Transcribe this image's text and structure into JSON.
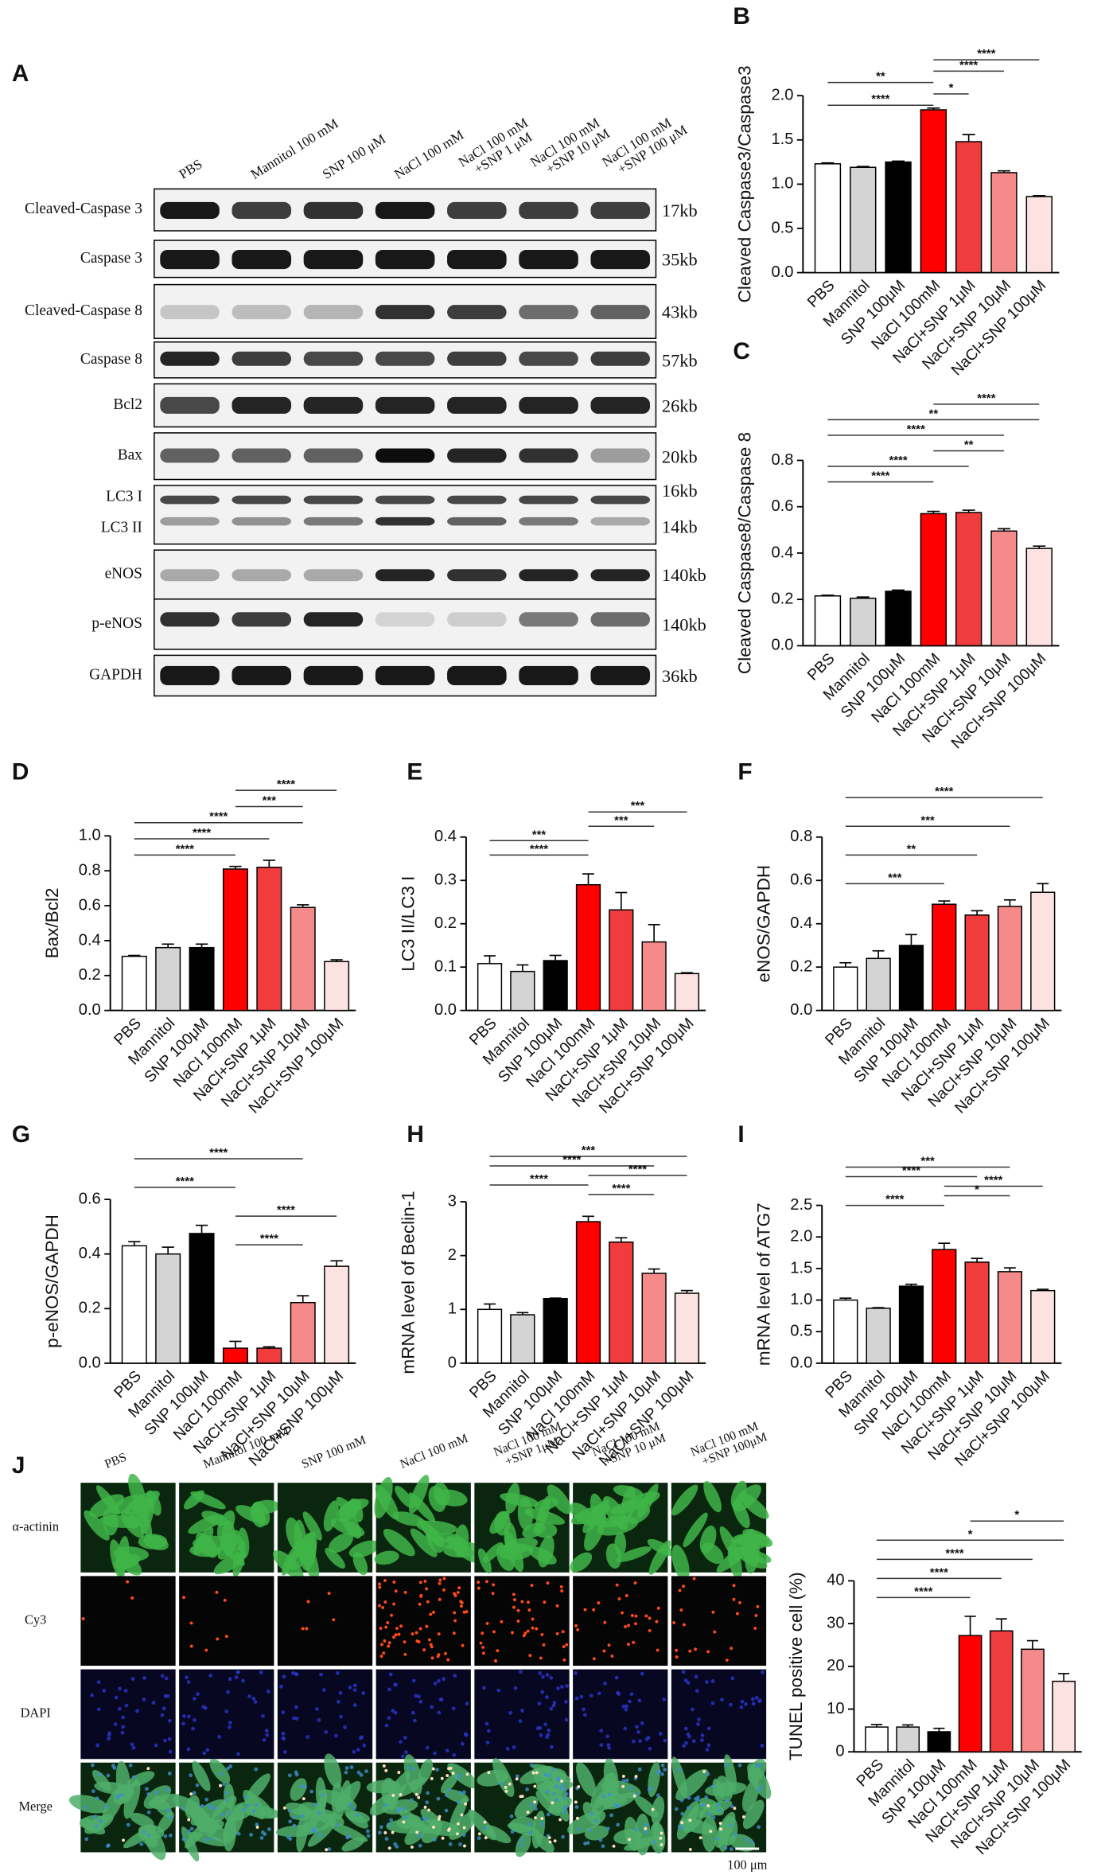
{
  "panel_a": {
    "panel": "A",
    "lanes": [
      "PBS",
      "Mannitol 100 mM",
      "SNP 100 μM",
      "NaCl 100 mM",
      [
        "NaCl 100 mM",
        "+SNP 1 μM"
      ],
      [
        "NaCl 100 mM",
        "+SNP 10 μM"
      ],
      [
        "NaCl 100 mM",
        "+SNP 100 μM"
      ]
    ],
    "rows": [
      {
        "labels": [
          "Cleaved-Caspase 3"
        ],
        "sizes": [
          "17kb"
        ]
      },
      {
        "labels": [
          "Caspase 3"
        ],
        "sizes": [
          "35kb"
        ]
      },
      {
        "labels": [
          "Cleaved-Caspase 8"
        ],
        "sizes": [
          "43kb"
        ]
      },
      {
        "labels": [
          "Caspase 8"
        ],
        "sizes": [
          "57kb"
        ]
      },
      {
        "labels": [
          "Bcl2"
        ],
        "sizes": [
          "26kb"
        ]
      },
      {
        "labels": [
          "Bax"
        ],
        "sizes": [
          "20kb"
        ]
      },
      {
        "labels": [
          "LC3 I",
          "LC3 II"
        ],
        "sizes": [
          "16kb",
          "14kb"
        ]
      },
      {
        "labels": [
          "eNOS"
        ],
        "sizes": [
          "140kb"
        ]
      },
      {
        "labels": [
          "p-eNOS"
        ],
        "sizes": [
          "140kb"
        ]
      },
      {
        "labels": [
          "GAPDH"
        ],
        "sizes": [
          "36kb"
        ]
      }
    ]
  },
  "chart_data": [
    {
      "type": "bar",
      "panel": "B",
      "ylabel": "Cleaved Caspase3/Caspase3",
      "categories": [
        "PBS",
        "Mannitol",
        "SNP 100μM",
        "NaCl 100mM",
        "NaCl+SNP 1μM",
        "NaCl+SNP 10μM",
        "NaCl+SNP 100μM"
      ],
      "values": [
        1.23,
        1.19,
        1.25,
        1.84,
        1.48,
        1.13,
        0.86
      ],
      "errors": [
        0.01,
        0.01,
        0.01,
        0.02,
        0.08,
        0.02,
        0.01
      ],
      "colors": [
        "#ffffff",
        "#d4d4d4",
        "#000000",
        "#ff0000",
        "#f03c3c",
        "#f58a8a",
        "#fde2e2"
      ],
      "ylim": [
        0,
        2
      ],
      "yticks": [
        {
          "value": 0,
          "label": "0.0"
        },
        0.5,
        {
          "value": 1,
          "label": "1.0"
        },
        1.5,
        {
          "value": 2,
          "label": "2.0"
        }
      ],
      "brackets": [
        {
          "from": 3,
          "to": 6,
          "label": "****"
        },
        {
          "from": 3,
          "to": 5,
          "label": "****"
        },
        {
          "from": 0,
          "to": 3,
          "label": "**"
        },
        {
          "from": 3,
          "to": 4,
          "label": "*"
        },
        {
          "from": 0,
          "to": 3,
          "label": "****"
        }
      ]
    },
    {
      "type": "bar",
      "panel": "C",
      "ylabel": "Cleaved Caspase8/Caspase 8",
      "categories": [
        "PBS",
        "Mannitol",
        "SNP 100μM",
        "NaCl 100mM",
        "NaCl+SNP 1μM",
        "NaCl+SNP 10μM",
        "NaCl+SNP 100μM"
      ],
      "values": [
        0.215,
        0.205,
        0.235,
        0.57,
        0.575,
        0.495,
        0.42
      ],
      "errors": [
        0.003,
        0.005,
        0.005,
        0.01,
        0.01,
        0.01,
        0.01
      ],
      "colors": [
        "#ffffff",
        "#d4d4d4",
        "#000000",
        "#ff0000",
        "#f03c3c",
        "#f58a8a",
        "#fde2e2"
      ],
      "ylim": [
        0,
        0.8
      ],
      "yticks": [
        {
          "value": 0,
          "label": "0.0"
        },
        0.2,
        0.4,
        0.6,
        0.8
      ],
      "brackets": [
        {
          "from": 3,
          "to": 6,
          "label": "****"
        },
        {
          "from": 0,
          "to": 6,
          "label": "**"
        },
        {
          "from": 0,
          "to": 5,
          "label": "****"
        },
        {
          "from": 3,
          "to": 5,
          "label": "**"
        },
        {
          "from": 0,
          "to": 4,
          "label": "****"
        },
        {
          "from": 0,
          "to": 3,
          "label": "****"
        }
      ]
    },
    {
      "type": "bar",
      "panel": "D",
      "ylabel": "Bax/Bcl2",
      "categories": [
        "PBS",
        "Mannitol",
        "SNP 100μM",
        "NaCl 100mM",
        "NaCl+SNP 1μM",
        "NaCl+SNP 10μM",
        "NaCl+SNP 100μM"
      ],
      "values": [
        0.31,
        0.36,
        0.36,
        0.81,
        0.82,
        0.59,
        0.28
      ],
      "errors": [
        0.005,
        0.02,
        0.02,
        0.015,
        0.04,
        0.015,
        0.01
      ],
      "colors": [
        "#ffffff",
        "#d4d4d4",
        "#000000",
        "#ff0000",
        "#f03c3c",
        "#f58a8a",
        "#fde2e2"
      ],
      "ylim": [
        0,
        1
      ],
      "yticks": [
        {
          "value": 0,
          "label": "0.0"
        },
        0.2,
        0.4,
        0.6,
        0.8,
        {
          "value": 1,
          "label": "1.0"
        }
      ],
      "brackets": [
        {
          "from": 3,
          "to": 6,
          "label": "****"
        },
        {
          "from": 3,
          "to": 5,
          "label": "***"
        },
        {
          "from": 0,
          "to": 5,
          "label": "****"
        },
        {
          "from": 0,
          "to": 4,
          "label": "****"
        },
        {
          "from": 0,
          "to": 3,
          "label": "****"
        }
      ]
    },
    {
      "type": "bar",
      "panel": "E",
      "ylabel": "LC3 II/LC3 I",
      "categories": [
        "PBS",
        "Mannitol",
        "SNP 100μM",
        "NaCl 100mM",
        "NaCl+SNP 1μM",
        "NaCl+SNP 10μM",
        "NaCl+SNP 100μM"
      ],
      "values": [
        0.108,
        0.09,
        0.115,
        0.29,
        0.232,
        0.158,
        0.085
      ],
      "errors": [
        0.018,
        0.015,
        0.012,
        0.025,
        0.04,
        0.04,
        0.002
      ],
      "colors": [
        "#ffffff",
        "#d4d4d4",
        "#000000",
        "#ff0000",
        "#f03c3c",
        "#f58a8a",
        "#fde2e2"
      ],
      "ylim": [
        0,
        0.4
      ],
      "yticks": [
        {
          "value": 0,
          "label": "0.0"
        },
        0.1,
        0.2,
        0.3,
        0.4
      ],
      "brackets": [
        {
          "from": 3,
          "to": 6,
          "label": "***"
        },
        {
          "from": 3,
          "to": 5,
          "label": "***"
        },
        {
          "from": 0,
          "to": 3,
          "label": "***"
        },
        {
          "from": 0,
          "to": 3,
          "label": "****"
        }
      ]
    },
    {
      "type": "bar",
      "panel": "F",
      "ylabel": "eNOS/GAPDH",
      "categories": [
        "PBS",
        "Mannitol",
        "SNP 100μM",
        "NaCl 100mM",
        "NaCl+SNP 1μM",
        "NaCl+SNP 10μM",
        "NaCl+SNP 100μM"
      ],
      "values": [
        0.2,
        0.24,
        0.3,
        0.49,
        0.44,
        0.48,
        0.545
      ],
      "errors": [
        0.02,
        0.035,
        0.05,
        0.015,
        0.02,
        0.03,
        0.04
      ],
      "colors": [
        "#ffffff",
        "#d4d4d4",
        "#000000",
        "#ff0000",
        "#f03c3c",
        "#f58a8a",
        "#fde2e2"
      ],
      "ylim": [
        0,
        0.8
      ],
      "yticks": [
        {
          "value": 0,
          "label": "0.0"
        },
        0.2,
        0.4,
        0.6,
        0.8
      ],
      "brackets": [
        {
          "from": 0,
          "to": 6,
          "label": "****"
        },
        {
          "from": 0,
          "to": 5,
          "label": "***"
        },
        {
          "from": 0,
          "to": 4,
          "label": "**"
        },
        {
          "from": 0,
          "to": 3,
          "label": "***"
        }
      ]
    },
    {
      "type": "bar",
      "panel": "G",
      "ylabel": "p-eNOS/GAPDH",
      "categories": [
        "PBS",
        "Mannitol",
        "SNP 100μM",
        "NaCl 100mM",
        "NaCl+SNP 1μM",
        "NaCl+SNP 10μM",
        "NaCl+SNP 100μM"
      ],
      "values": [
        0.43,
        0.4,
        0.475,
        0.055,
        0.055,
        0.222,
        0.355
      ],
      "errors": [
        0.015,
        0.025,
        0.03,
        0.025,
        0.005,
        0.025,
        0.02
      ],
      "colors": [
        "#ffffff",
        "#d4d4d4",
        "#000000",
        "#ff0000",
        "#f03c3c",
        "#f58a8a",
        "#fde2e2"
      ],
      "ylim": [
        0,
        0.6
      ],
      "yticks": [
        {
          "value": 0,
          "label": "0.0"
        },
        0.2,
        0.4,
        0.6
      ],
      "brackets": [
        {
          "from": 0,
          "to": 5,
          "label": "****"
        },
        {
          "from": 0,
          "to": 3,
          "label": "****"
        },
        {
          "from": 3,
          "to": 6,
          "label": "****"
        },
        {
          "from": 3,
          "to": 5,
          "label": "****"
        }
      ]
    },
    {
      "type": "bar",
      "panel": "H",
      "ylabel": "mRNA level of Beclin-1",
      "categories": [
        "PBS",
        "Mannitol",
        "SNP 100μM",
        "NaCl 100mM",
        "NaCl+SNP 1μM",
        "NaCl+SNP 10μM",
        "NaCl+SNP 100μM"
      ],
      "values": [
        1.0,
        0.9,
        1.2,
        2.63,
        2.25,
        1.67,
        1.3
      ],
      "errors": [
        0.1,
        0.04,
        0.01,
        0.1,
        0.08,
        0.08,
        0.05
      ],
      "colors": [
        "#ffffff",
        "#d4d4d4",
        "#000000",
        "#ff0000",
        "#f03c3c",
        "#f58a8a",
        "#fde2e2"
      ],
      "ylim": [
        0,
        3
      ],
      "yticks": [
        0,
        1,
        2,
        3
      ],
      "brackets": [
        {
          "from": 0,
          "to": 6,
          "label": "***"
        },
        {
          "from": 0,
          "to": 5,
          "label": "****"
        },
        {
          "from": 3,
          "to": 6,
          "label": "****"
        },
        {
          "from": 0,
          "to": 3,
          "label": "****"
        },
        {
          "from": 3,
          "to": 5,
          "label": "****"
        }
      ]
    },
    {
      "type": "bar",
      "panel": "I",
      "ylabel": "mRNA level of ATG7",
      "categories": [
        "PBS",
        "Mannitol",
        "SNP 100μM",
        "NaCl 100mM",
        "NaCl+SNP 1μM",
        "NaCl+SNP 10μM",
        "NaCl+SNP 100μM"
      ],
      "values": [
        1.0,
        0.87,
        1.22,
        1.8,
        1.6,
        1.45,
        1.15
      ],
      "errors": [
        0.03,
        0.01,
        0.03,
        0.1,
        0.06,
        0.06,
        0.02
      ],
      "colors": [
        "#ffffff",
        "#d4d4d4",
        "#000000",
        "#ff0000",
        "#f03c3c",
        "#f58a8a",
        "#fde2e2"
      ],
      "ylim": [
        0,
        2.5
      ],
      "yticks": [
        {
          "value": 0,
          "label": "0.0"
        },
        0.5,
        {
          "value": 1,
          "label": "1.0"
        },
        1.5,
        {
          "value": 2,
          "label": "2.0"
        },
        2.5
      ],
      "brackets": [
        {
          "from": 0,
          "to": 5,
          "label": "***"
        },
        {
          "from": 0,
          "to": 4,
          "label": "****"
        },
        {
          "from": 3,
          "to": 6,
          "label": "****"
        },
        {
          "from": 3,
          "to": 5,
          "label": "*"
        },
        {
          "from": 0,
          "to": 3,
          "label": "****"
        }
      ]
    },
    {
      "type": "bar",
      "ylabel": "TUNEL positive cell (%)",
      "categories": [
        "PBS",
        "Mannitol",
        "SNP 100μM",
        "NaCl 100mM",
        "NaCl+SNP 1μM",
        "NaCl+SNP 10μM",
        "NaCl+SNP 100μM"
      ],
      "values": [
        5.8,
        5.8,
        4.7,
        27.2,
        28.3,
        24,
        16.5
      ],
      "errors": [
        0.6,
        0.5,
        0.8,
        4.5,
        2.8,
        2,
        1.8
      ],
      "colors": [
        "#ffffff",
        "#d4d4d4",
        "#000000",
        "#ff0000",
        "#f03c3c",
        "#f58a8a",
        "#fde2e2"
      ],
      "ylim": [
        0,
        40
      ],
      "yticks": [
        0,
        10,
        20,
        30,
        40
      ],
      "brackets": [
        {
          "from": 3,
          "to": 6,
          "label": "*"
        },
        {
          "from": 0,
          "to": 6,
          "label": "*"
        },
        {
          "from": 0,
          "to": 5,
          "label": "****"
        },
        {
          "from": 0,
          "to": 4,
          "label": "****"
        },
        {
          "from": 0,
          "to": 3,
          "label": "****"
        }
      ]
    }
  ],
  "panel_j": {
    "panel": "J",
    "columns": [
      "PBS",
      "Mannitol 100 mM",
      "SNP 100 mM",
      "NaCl 100 mM",
      [
        "NaCl 100 mM",
        "+SNP 1μM"
      ],
      [
        "NaCl 100 mM",
        "+SNP 10 μM"
      ],
      [
        "NaCl 100 mM",
        "+SNP 100μM"
      ]
    ],
    "rows": [
      "α-actinin",
      "Cy3",
      "DAPI",
      "Merge"
    ],
    "scale_bar": "100 μm"
  }
}
